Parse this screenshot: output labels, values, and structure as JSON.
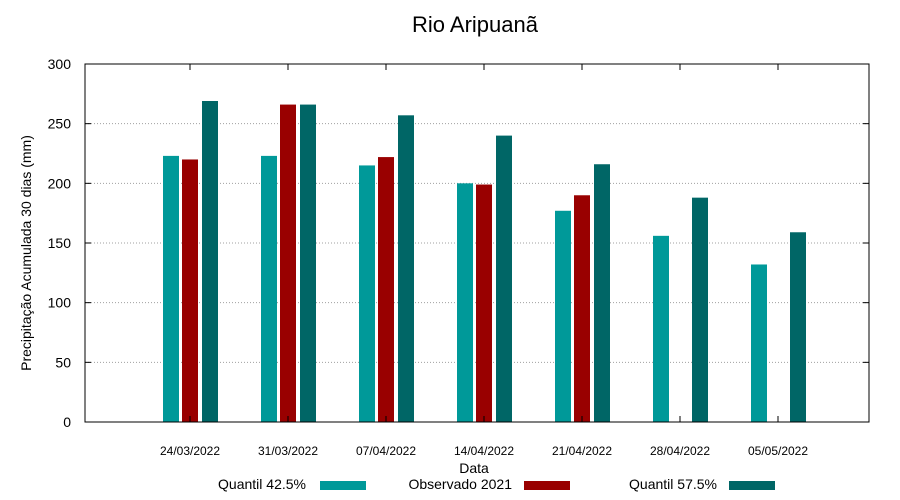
{
  "chart_data": {
    "type": "bar",
    "title": "Rio Aripuanã",
    "xlabel": "Data",
    "ylabel": "Precipitação Acumulada 30 dias (mm)",
    "ylim": [
      0,
      300
    ],
    "yticks": [
      0,
      50,
      100,
      150,
      200,
      250,
      300
    ],
    "grid": true,
    "legend_position": "bottom",
    "categories": [
      "24/03/2022",
      "31/03/2022",
      "07/04/2022",
      "14/04/2022",
      "21/04/2022",
      "28/04/2022",
      "05/05/2022"
    ],
    "series": [
      {
        "name": "Quantil 42.5%",
        "color": "#009999",
        "values": [
          223,
          223,
          215,
          200,
          177,
          156,
          132
        ]
      },
      {
        "name": "Observado 2021",
        "color": "#990000",
        "values": [
          220,
          266,
          222,
          199,
          190,
          null,
          null
        ]
      },
      {
        "name": "Quantil 57.5%",
        "color": "#006666",
        "values": [
          269,
          266,
          257,
          240,
          216,
          188,
          159
        ]
      }
    ]
  }
}
